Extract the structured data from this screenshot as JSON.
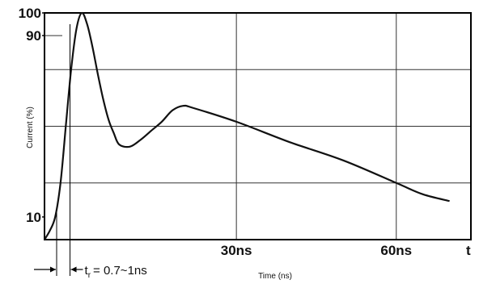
{
  "chart_data": {
    "type": "line",
    "title": "",
    "xlabel": "Time (ns)",
    "ylabel": "Current (%)",
    "x_ticks": [
      {
        "value": 30,
        "label": "30ns"
      },
      {
        "value": 60,
        "label": "60ns"
      }
    ],
    "x_axis_end_label": "t",
    "y_ticks": [
      {
        "value": 10,
        "label": "10"
      },
      {
        "value": 90,
        "label": "90"
      },
      {
        "value": 100,
        "label": "100"
      }
    ],
    "xlim": [
      -6,
      74
    ],
    "ylim": [
      0,
      100
    ],
    "grid": true,
    "series": [
      {
        "x": [
          -6,
          -5,
          -4,
          -3,
          -2,
          -1,
          0,
          1,
          2,
          3,
          4,
          5,
          6,
          7,
          8,
          10,
          12,
          14,
          16,
          18,
          20,
          22,
          30,
          40,
          50,
          60,
          65,
          70
        ],
        "y": [
          0,
          4,
          10,
          25,
          50,
          75,
          93,
          100,
          95,
          85,
          73,
          62,
          53,
          47,
          42,
          41,
          44,
          48,
          52,
          57,
          59,
          58,
          52,
          43,
          35,
          25,
          20,
          17
        ]
      }
    ],
    "annotation": {
      "x_start": -6,
      "x_end": 0,
      "text": "t",
      "subscript": "r",
      "value": "= 0.7~1ns"
    }
  }
}
